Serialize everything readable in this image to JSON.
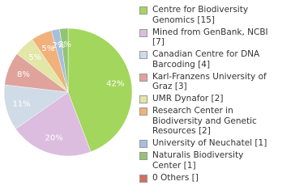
{
  "chart_data": {
    "type": "pie",
    "categories": [
      "Centre for Biodiversity Genomics [15]",
      "Mined from GenBank, NCBI [7]",
      "Canadian Centre for DNA Barcoding [4]",
      "Karl-Franzens University of Graz [3]",
      "UMR Dynafor [2]",
      "Research Center in Biodiversity and Genetic Resources [2]",
      "University of Neuchatel [1]",
      "Naturalis Biodiversity Center [1]",
      "0 Others []"
    ],
    "values": [
      42,
      20,
      11,
      8,
      5,
      5,
      2,
      2,
      null
    ],
    "value_labels": [
      "42%",
      "20%",
      "11%",
      "8%",
      "5%",
      "5%",
      "2%",
      "2%",
      null
    ],
    "colors": [
      "#a3d65c",
      "#dcbde0",
      "#cfdbe6",
      "#e0a39c",
      "#e2e6a6",
      "#f0b27a",
      "#a6bfe0",
      "#92c472",
      "#d07060"
    ]
  }
}
